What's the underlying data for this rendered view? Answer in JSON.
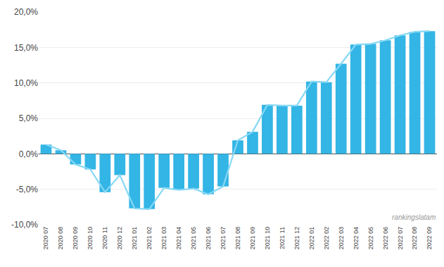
{
  "chart_data": {
    "type": "bar",
    "categories": [
      "2020 07",
      "2020 08",
      "2020 09",
      "2020 10",
      "2020 11",
      "2020 12",
      "2021 01",
      "2021 02",
      "2021 03",
      "2021 04",
      "2021 05",
      "2021 06",
      "2021 07",
      "2021 08",
      "2021 09",
      "2021 10",
      "2021 11",
      "2021 12",
      "2022 01",
      "2022 02",
      "2022 03",
      "2022 04",
      "2022 05",
      "2022 06",
      "2022 07",
      "2022 08",
      "2022 09"
    ],
    "series": [
      {
        "type": "bar",
        "color": "#33b5e5",
        "values": [
          1.3,
          0.5,
          -1.5,
          -2.2,
          -5.4,
          -3.0,
          -7.7,
          -7.8,
          -4.8,
          -5.1,
          -4.9,
          -5.7,
          -4.6,
          1.9,
          3.1,
          6.9,
          6.8,
          6.8,
          10.2,
          10.1,
          12.7,
          15.4,
          15.5,
          16.0,
          16.7,
          17.2,
          17.3
        ]
      },
      {
        "type": "line",
        "color": "#87d8f5",
        "values": [
          1.3,
          0.5,
          -1.5,
          -2.2,
          -5.4,
          -3.0,
          -7.7,
          -7.8,
          -4.8,
          -5.1,
          -4.9,
          -5.7,
          -4.6,
          1.9,
          3.1,
          6.9,
          6.8,
          6.8,
          10.2,
          10.1,
          12.7,
          15.4,
          15.5,
          16.0,
          16.7,
          17.2,
          17.3
        ]
      }
    ],
    "ylim": [
      -10.0,
      20.0
    ],
    "yticks": [
      {
        "value": -10.0,
        "label": "-10,0%"
      },
      {
        "value": -5.0,
        "label": "-5,0%"
      },
      {
        "value": 0.0,
        "label": "0,0%"
      },
      {
        "value": 5.0,
        "label": "5,0%"
      },
      {
        "value": 10.0,
        "label": "10,0%"
      },
      {
        "value": 15.0,
        "label": "15,0%"
      },
      {
        "value": 20.0,
        "label": "20,0%"
      }
    ],
    "grid": true,
    "annotations": [
      "rankingslatam"
    ]
  }
}
